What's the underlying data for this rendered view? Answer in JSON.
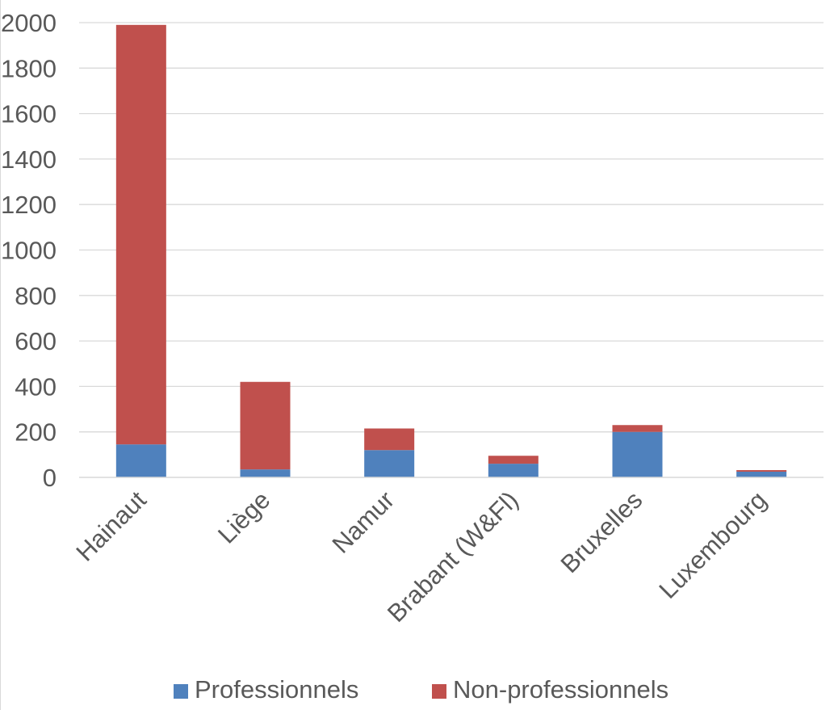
{
  "chart_data": {
    "type": "bar",
    "stacked": true,
    "title": "",
    "xlabel": "",
    "ylabel": "",
    "categories": [
      "Hainaut",
      "Liège",
      "Namur",
      "Brabant (W&Fl)",
      "Bruxelles",
      "Luxembourg"
    ],
    "series": [
      {
        "name": "Professionnels",
        "color": "#4f81bd",
        "values": [
          145,
          35,
          120,
          60,
          200,
          25
        ]
      },
      {
        "name": "Non-professionnels",
        "color": "#c0504d",
        "values": [
          1845,
          385,
          95,
          35,
          30,
          7
        ]
      }
    ],
    "ylim": [
      0,
      2000
    ],
    "yticks": [
      "0",
      "200",
      "400",
      "600",
      "800",
      "1000",
      "1200",
      "1400",
      "1600",
      "1800",
      "2000"
    ],
    "grid": true,
    "legend_position": "bottom"
  }
}
